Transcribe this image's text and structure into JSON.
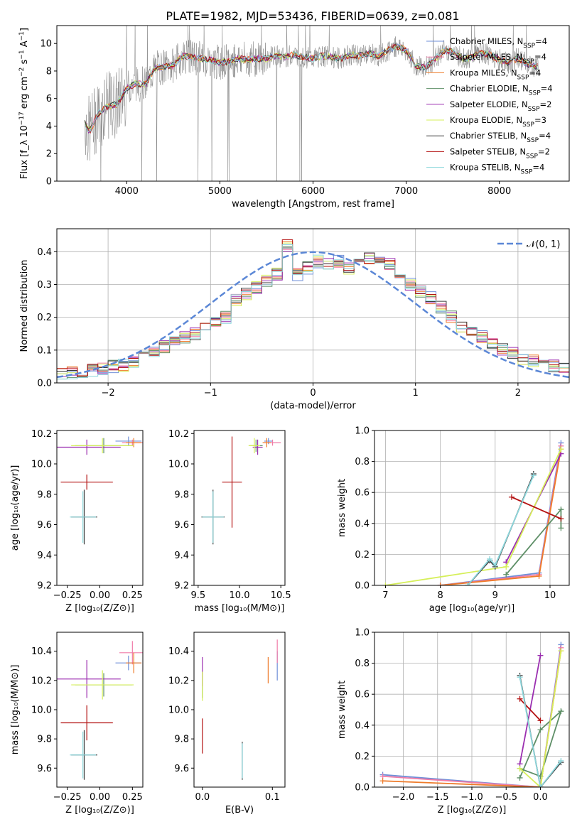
{
  "title": "PLATE=1982, MJD=53436, FIBERID=0639, z=0.081",
  "colors": {
    "Chabrier MILES": "#6f8fd8",
    "Salpeter MILES": "#f07ca8",
    "Kroupa MILES": "#ee7b2a",
    "Chabrier ELODIE": "#5e8f67",
    "Salpeter ELODIE": "#9b2fb0",
    "Kroupa ELODIE": "#d6ef5a",
    "Chabrier STELIB": "#3c3c3c",
    "Salpeter STELIB": "#b41414",
    "Kroupa STELIB": "#8dd7dc",
    "observed": "#808080",
    "gaussian": "#5b87d6"
  },
  "chart_data": [
    {
      "type": "line",
      "id": "spectrum",
      "xlabel": "wavelength [Angstrom, rest frame]",
      "ylabel": "Flux [f_λ 10^-17 erg cm^-2 s^-1 A^-1]",
      "xlim": [
        3250,
        8750
      ],
      "ylim": [
        0,
        11.3
      ],
      "xticks": [
        "4000",
        "5000",
        "6000",
        "7000",
        "8000"
      ],
      "yticks": [
        "0",
        "2",
        "4",
        "6",
        "8",
        "10"
      ],
      "legend_position": "top-right",
      "legend": [
        "Chabrier MILES, N_SSP=4",
        "Salpeter MILES, N_SSP=4",
        "Kroupa MILES, N_SSP=4",
        "Chabrier ELODIE, N_SSP=4",
        "Salpeter ELODIE, N_SSP=2",
        "Kroupa ELODIE, N_SSP=3",
        "Chabrier STELIB, N_SSP=4",
        "Salpeter STELIB, N_SSP=2",
        "Kroupa STELIB, N_SSP=4"
      ],
      "continuum": {
        "x": [
          3550,
          3600,
          3700,
          3800,
          3900,
          4000,
          4100,
          4200,
          4300,
          4400,
          4500,
          4600,
          4700,
          4800,
          4900,
          5000,
          5100,
          5200,
          5300,
          5400,
          5500,
          5600,
          5700,
          5800,
          5900,
          6000,
          6100,
          6200,
          6300,
          6400,
          6500,
          6600,
          6700,
          6800,
          6900,
          7000,
          7100,
          7200,
          7300,
          7400,
          7500,
          7600,
          7700,
          7800,
          7900,
          8000,
          8100,
          8200,
          8300,
          8400
        ],
        "y": [
          4.2,
          3.6,
          5.0,
          5.4,
          5.6,
          6.8,
          7.1,
          7.0,
          8.2,
          8.3,
          8.4,
          9.1,
          9.0,
          8.9,
          8.8,
          8.6,
          8.7,
          8.9,
          8.8,
          8.9,
          8.9,
          9.1,
          9.0,
          9.2,
          9.0,
          8.9,
          9.1,
          9.0,
          8.9,
          9.2,
          9.1,
          9.3,
          9.1,
          9.5,
          9.8,
          9.5,
          8.4,
          8.2,
          8.8,
          9.5,
          9.4,
          8.9,
          9.0,
          9.3,
          9.2,
          8.8,
          8.6,
          8.9,
          8.5,
          8.3
        ]
      }
    },
    {
      "type": "bar",
      "id": "residual-histogram",
      "xlabel": "(data-model)/error",
      "ylabel": "Normed distribution",
      "xlim": [
        -2.5,
        2.5
      ],
      "ylim": [
        0,
        0.47
      ],
      "xticks": [
        "−2",
        "−1",
        "0",
        "1",
        "2"
      ],
      "yticks": [
        "0.0",
        "0.1",
        "0.2",
        "0.3",
        "0.4"
      ],
      "legend_position": "top-right",
      "gaussian_label": "𝒩(0, 1)",
      "bins": [
        -2.5,
        -2.4,
        -2.3,
        -2.2,
        -2.1,
        -2.0,
        -1.9,
        -1.8,
        -1.7,
        -1.6,
        -1.5,
        -1.4,
        -1.3,
        -1.2,
        -1.1,
        -1.0,
        -0.9,
        -0.8,
        -0.7,
        -0.6,
        -0.5,
        -0.4,
        -0.3,
        -0.2,
        -0.1,
        0.0,
        0.1,
        0.2,
        0.3,
        0.4,
        0.5,
        0.6,
        0.7,
        0.8,
        0.9,
        1.0,
        1.1,
        1.2,
        1.3,
        1.4,
        1.5,
        1.6,
        1.7,
        1.8,
        1.9,
        2.0,
        2.1,
        2.2,
        2.3,
        2.4
      ],
      "histogram": [
        0.03,
        0.03,
        0.035,
        0.04,
        0.045,
        0.05,
        0.055,
        0.065,
        0.075,
        0.09,
        0.11,
        0.13,
        0.14,
        0.15,
        0.17,
        0.19,
        0.2,
        0.25,
        0.27,
        0.29,
        0.31,
        0.33,
        0.42,
        0.33,
        0.35,
        0.37,
        0.36,
        0.37,
        0.35,
        0.37,
        0.38,
        0.37,
        0.36,
        0.32,
        0.3,
        0.28,
        0.26,
        0.23,
        0.2,
        0.17,
        0.15,
        0.14,
        0.12,
        0.1,
        0.09,
        0.07,
        0.065,
        0.06,
        0.05,
        0.045
      ]
    },
    {
      "type": "scatter",
      "id": "age-vs-Z",
      "xlabel": "Z [log10(Z/Z⊙)]",
      "ylabel": "age [log10(age/yr)]",
      "xlim": [
        -0.33,
        0.33
      ],
      "ylim": [
        9.2,
        10.22
      ],
      "xticks": [
        "−0.25",
        "0.00",
        "0.25"
      ],
      "yticks": [
        "9.2",
        "9.4",
        "9.6",
        "9.8",
        "10.0",
        "10.2"
      ],
      "points": [
        {
          "model": "Chabrier MILES",
          "x": 0.22,
          "y": 10.15,
          "xerr": 0.1,
          "yerr": 0.03
        },
        {
          "model": "Salpeter MILES",
          "x": 0.25,
          "y": 10.14,
          "xerr": 0.08,
          "yerr": 0.02
        },
        {
          "model": "Kroupa MILES",
          "x": 0.26,
          "y": 10.14,
          "xerr": 0.06,
          "yerr": 0.03
        },
        {
          "model": "Chabrier ELODIE",
          "x": 0.03,
          "y": 10.12,
          "xerr": 0.22,
          "yerr": 0.05
        },
        {
          "model": "Salpeter ELODIE",
          "x": -0.1,
          "y": 10.11,
          "xerr": 0.26,
          "yerr": 0.05
        },
        {
          "model": "Kroupa ELODIE",
          "x": 0.02,
          "y": 10.12,
          "xerr": 0.24,
          "yerr": 0.05
        },
        {
          "model": "Chabrier STELIB",
          "x": -0.12,
          "y": 9.65,
          "xerr": 0.1,
          "yerr": 0.18
        },
        {
          "model": "Salpeter STELIB",
          "x": -0.1,
          "y": 9.88,
          "xerr": 0.2,
          "yerr": 0.05
        },
        {
          "model": "Kroupa STELIB",
          "x": -0.13,
          "y": 9.65,
          "xerr": 0.1,
          "yerr": 0.17
        }
      ]
    },
    {
      "type": "scatter",
      "id": "age-vs-mass",
      "xlabel": "mass [log10(M/M⊙)]",
      "ylabel": "",
      "xlim": [
        9.45,
        10.55
      ],
      "ylim": [
        9.2,
        10.22
      ],
      "xticks": [
        "9.5",
        "10.0",
        "10.5"
      ],
      "yticks": [
        "9.2",
        "9.4",
        "9.6",
        "9.8",
        "10.0",
        "10.2"
      ],
      "points": [
        {
          "model": "Chabrier MILES",
          "x": 10.35,
          "y": 10.15,
          "xerr": 0.05,
          "yerr": 0.02
        },
        {
          "model": "Salpeter MILES",
          "x": 10.4,
          "y": 10.14,
          "xerr": 0.1,
          "yerr": 0.02
        },
        {
          "model": "Kroupa MILES",
          "x": 10.33,
          "y": 10.14,
          "xerr": 0.05,
          "yerr": 0.03
        },
        {
          "model": "Chabrier ELODIE",
          "x": 10.2,
          "y": 10.12,
          "xerr": 0.08,
          "yerr": 0.04
        },
        {
          "model": "Salpeter ELODIE",
          "x": 10.22,
          "y": 10.11,
          "xerr": 0.06,
          "yerr": 0.05
        },
        {
          "model": "Kroupa ELODIE",
          "x": 10.18,
          "y": 10.12,
          "xerr": 0.07,
          "yerr": 0.05
        },
        {
          "model": "Chabrier STELIB",
          "x": 9.68,
          "y": 9.65,
          "xerr": 0.14,
          "yerr": 0.18
        },
        {
          "model": "Salpeter STELIB",
          "x": 9.91,
          "y": 9.88,
          "xerr": 0.12,
          "yerr": 0.3
        },
        {
          "model": "Kroupa STELIB",
          "x": 9.68,
          "y": 9.65,
          "xerr": 0.13,
          "yerr": 0.17
        }
      ]
    },
    {
      "type": "line",
      "id": "weight-vs-age",
      "xlabel": "age [log10(age/yr)]",
      "ylabel": "mass weight",
      "xlim": [
        6.8,
        10.35
      ],
      "ylim": [
        0,
        1.0
      ],
      "xticks": [
        "7",
        "8",
        "9",
        "10"
      ],
      "yticks": [
        "0.0",
        "0.2",
        "0.4",
        "0.6",
        "0.8",
        "1.0"
      ],
      "series": [
        {
          "model": "Chabrier MILES",
          "x": [
            8.0,
            9.8,
            10.2
          ],
          "y": [
            0.0,
            0.08,
            0.92
          ]
        },
        {
          "model": "Salpeter MILES",
          "x": [
            8.0,
            9.8,
            10.2
          ],
          "y": [
            0.0,
            0.07,
            0.9
          ]
        },
        {
          "model": "Kroupa MILES",
          "x": [
            8.0,
            9.8,
            10.2
          ],
          "y": [
            0.0,
            0.06,
            0.88
          ]
        },
        {
          "model": "Chabrier ELODIE",
          "x": [
            9.2,
            10.2,
            10.2
          ],
          "y": [
            0.07,
            0.49,
            0.37
          ]
        },
        {
          "model": "Salpeter ELODIE",
          "x": [
            9.2,
            10.2
          ],
          "y": [
            0.15,
            0.85
          ]
        },
        {
          "model": "Kroupa ELODIE",
          "x": [
            7.0,
            9.2,
            10.2
          ],
          "y": [
            0.0,
            0.12,
            0.88
          ]
        },
        {
          "model": "Chabrier STELIB",
          "x": [
            8.5,
            8.9,
            9.0,
            9.7
          ],
          "y": [
            0.0,
            0.16,
            0.12,
            0.72
          ]
        },
        {
          "model": "Salpeter STELIB",
          "x": [
            9.3,
            10.2
          ],
          "y": [
            0.57,
            0.43
          ]
        },
        {
          "model": "Kroupa STELIB",
          "x": [
            8.5,
            8.9,
            9.0,
            9.7
          ],
          "y": [
            0.0,
            0.17,
            0.13,
            0.71
          ]
        }
      ]
    },
    {
      "type": "scatter",
      "id": "mass-vs-Z",
      "xlabel": "Z [log10(Z/Z⊙)]",
      "ylabel": "mass [log10(M/M⊙)]",
      "xlim": [
        -0.33,
        0.33
      ],
      "ylim": [
        9.47,
        10.53
      ],
      "xticks": [
        "−0.25",
        "0.00",
        "0.25"
      ],
      "yticks": [
        "9.6",
        "9.8",
        "10.0",
        "10.2",
        "10.4"
      ],
      "points": [
        {
          "model": "Chabrier MILES",
          "x": 0.22,
          "y": 10.32,
          "xerr": 0.1,
          "yerr": 0.05
        },
        {
          "model": "Salpeter MILES",
          "x": 0.25,
          "y": 10.39,
          "xerr": 0.1,
          "yerr": 0.08
        },
        {
          "model": "Kroupa MILES",
          "x": 0.26,
          "y": 10.32,
          "xerr": 0.06,
          "yerr": 0.07
        },
        {
          "model": "Chabrier ELODIE",
          "x": 0.03,
          "y": 10.17,
          "xerr": 0.22,
          "yerr": 0.08
        },
        {
          "model": "Salpeter ELODIE",
          "x": -0.1,
          "y": 10.21,
          "xerr": 0.26,
          "yerr": 0.13
        },
        {
          "model": "Kroupa ELODIE",
          "x": 0.02,
          "y": 10.17,
          "xerr": 0.24,
          "yerr": 0.1
        },
        {
          "model": "Chabrier STELIB",
          "x": -0.12,
          "y": 9.69,
          "xerr": 0.1,
          "yerr": 0.17
        },
        {
          "model": "Salpeter STELIB",
          "x": -0.1,
          "y": 9.91,
          "xerr": 0.2,
          "yerr": 0.12
        },
        {
          "model": "Kroupa STELIB",
          "x": -0.13,
          "y": 9.69,
          "xerr": 0.1,
          "yerr": 0.16
        }
      ]
    },
    {
      "type": "scatter",
      "id": "mass-vs-EBV",
      "xlabel": "E(B-V)",
      "ylabel": "",
      "xlim": [
        -0.012,
        0.118
      ],
      "ylim": [
        9.47,
        10.53
      ],
      "xticks": [
        "0.0",
        "0.1"
      ],
      "yticks": [
        "9.6",
        "9.8",
        "10.0",
        "10.2",
        "10.4"
      ],
      "points": [
        {
          "model": "Chabrier MILES",
          "x": 0.107,
          "y": 10.3,
          "yerr": 0.1
        },
        {
          "model": "Salpeter MILES",
          "x": 0.107,
          "y": 10.4,
          "yerr": 0.08
        },
        {
          "model": "Kroupa MILES",
          "x": 0.094,
          "y": 10.27,
          "yerr": 0.09
        },
        {
          "model": "Chabrier ELODIE",
          "x": 0.0,
          "y": 10.17,
          "yerr": 0.09
        },
        {
          "model": "Salpeter ELODIE",
          "x": 0.0,
          "y": 10.26,
          "yerr": 0.1
        },
        {
          "model": "Kroupa ELODIE",
          "x": 0.0,
          "y": 10.16,
          "yerr": 0.1
        },
        {
          "model": "Chabrier STELIB",
          "x": 0.057,
          "y": 9.65,
          "yerr": 0.13
        },
        {
          "model": "Salpeter STELIB",
          "x": 0.0,
          "y": 9.82,
          "yerr": 0.12
        },
        {
          "model": "Kroupa STELIB",
          "x": 0.057,
          "y": 9.65,
          "yerr": 0.12
        }
      ]
    },
    {
      "type": "line",
      "id": "weight-vs-Z",
      "xlabel": "Z [log10(Z/Z⊙)]",
      "ylabel": "mass weight",
      "xlim": [
        -2.42,
        0.42
      ],
      "ylim": [
        0,
        1.0
      ],
      "xticks": [
        "−2.0",
        "−1.5",
        "−1.0",
        "−0.5",
        "0.0"
      ],
      "yticks": [
        "0.0",
        "0.2",
        "0.4",
        "0.6",
        "0.8",
        "1.0"
      ],
      "series": [
        {
          "model": "Chabrier MILES",
          "x": [
            -2.3,
            0.0,
            0.3
          ],
          "y": [
            0.08,
            0.0,
            0.92
          ]
        },
        {
          "model": "Salpeter MILES",
          "x": [
            -2.3,
            0.0,
            0.3
          ],
          "y": [
            0.07,
            0.0,
            0.9
          ]
        },
        {
          "model": "Kroupa MILES",
          "x": [
            -2.3,
            0.0,
            0.3
          ],
          "y": [
            0.04,
            0.0,
            0.88
          ]
        },
        {
          "model": "Chabrier ELODIE",
          "x": [
            -0.3,
            0.0,
            0.3,
            0.0,
            -0.3
          ],
          "y": [
            0.06,
            0.37,
            0.49,
            0.07,
            0.12
          ]
        },
        {
          "model": "Salpeter ELODIE",
          "x": [
            -0.3,
            0.0
          ],
          "y": [
            0.15,
            0.85
          ]
        },
        {
          "model": "Kroupa ELODIE",
          "x": [
            -0.3,
            0.0,
            0.3
          ],
          "y": [
            0.12,
            0.0,
            0.88
          ]
        },
        {
          "model": "Chabrier STELIB",
          "x": [
            -0.3,
            0.0,
            0.3
          ],
          "y": [
            0.72,
            0.0,
            0.16
          ]
        },
        {
          "model": "Salpeter STELIB",
          "x": [
            -0.3,
            0.0
          ],
          "y": [
            0.57,
            0.43
          ]
        },
        {
          "model": "Kroupa STELIB",
          "x": [
            -0.3,
            0.0,
            0.3
          ],
          "y": [
            0.71,
            0.0,
            0.17
          ]
        }
      ]
    }
  ]
}
